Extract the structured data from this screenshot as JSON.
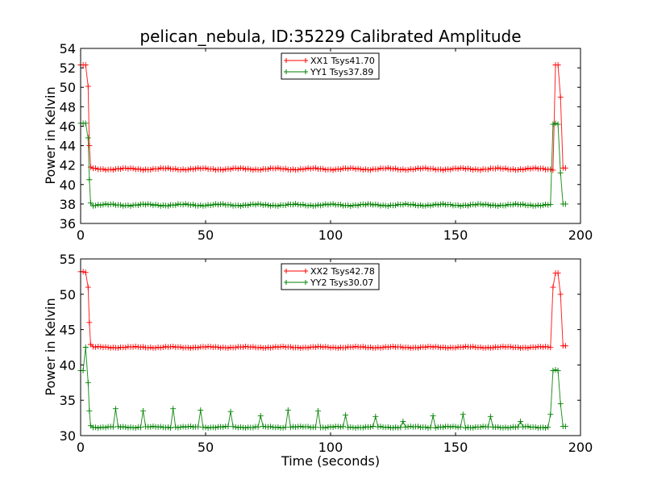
{
  "chart_data": [
    {
      "type": "line",
      "title": "pelican_nebula, ID:35229 Calibrated Amplitude",
      "xlabel": "",
      "ylabel": "Power in Kelvin",
      "xlim": [
        0,
        200
      ],
      "ylim": [
        36,
        54
      ],
      "xticks": [
        0,
        50,
        100,
        150,
        200
      ],
      "yticks": [
        36,
        38,
        40,
        42,
        44,
        46,
        48,
        50,
        52,
        54
      ],
      "legend_position": "top-center",
      "series": [
        {
          "name": "XX1 Tsys41.70",
          "color": "#ff0000",
          "base": 41.6,
          "x": [
            0,
            1,
            2,
            3,
            3.5,
            4,
            190,
            191,
            192,
            193,
            194
          ],
          "y": [
            52.3,
            52.3,
            52.3,
            50.1,
            44.0,
            41.8,
            52.3,
            52.3,
            49.0,
            41.7,
            41.7
          ]
        },
        {
          "name": "YY1 Tsys37.89",
          "color": "#008000",
          "base": 37.9,
          "x": [
            0,
            1,
            2,
            3,
            3.5,
            4,
            189,
            190,
            191,
            192,
            193,
            194
          ],
          "y": [
            46.3,
            46.3,
            46.3,
            44.8,
            40.5,
            38.1,
            46.2,
            46.3,
            46.2,
            41.2,
            38.0,
            38.0
          ]
        }
      ]
    },
    {
      "type": "line",
      "title": "",
      "xlabel": "Time (seconds)",
      "ylabel": "Power in Kelvin",
      "xlim": [
        0,
        200
      ],
      "ylim": [
        30,
        55
      ],
      "xticks": [
        0,
        50,
        100,
        150,
        200
      ],
      "yticks": [
        30,
        35,
        40,
        45,
        50,
        55
      ],
      "legend_position": "top-center",
      "series": [
        {
          "name": "XX2 Tsys42.78",
          "color": "#ff0000",
          "base": 42.5,
          "x": [
            0,
            1,
            2,
            3,
            3.5,
            4,
            189,
            190,
            191,
            192,
            193,
            194
          ],
          "y": [
            53.2,
            53.2,
            53.1,
            51.0,
            46.0,
            42.9,
            51.0,
            53.0,
            53.0,
            50.0,
            42.7,
            42.7
          ]
        },
        {
          "name": "YY2 Tsys30.07",
          "color": "#008000",
          "base": 31.2,
          "x": [
            0,
            1,
            2,
            3,
            3.5,
            4,
            188,
            189,
            190,
            191,
            192,
            193,
            194
          ],
          "y": [
            39.2,
            39.2,
            42.5,
            37.5,
            33.5,
            31.4,
            33.0,
            39.2,
            39.3,
            39.2,
            34.5,
            31.3,
            31.3
          ],
          "spikes_x": [
            14,
            25,
            37,
            48,
            60,
            72,
            83,
            95,
            106,
            118,
            129,
            141,
            153,
            164,
            176
          ],
          "spikes_y": [
            33.8,
            33.5,
            33.8,
            33.6,
            33.4,
            32.8,
            33.6,
            33.5,
            32.9,
            32.7,
            32.0,
            32.8,
            33.0,
            32.7,
            32.0
          ]
        }
      ]
    }
  ]
}
